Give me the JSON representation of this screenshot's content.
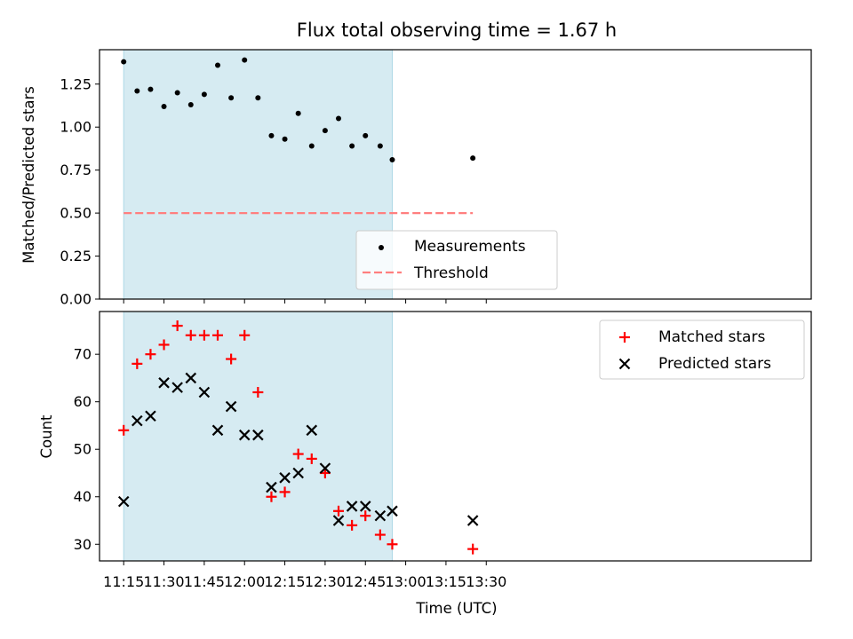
{
  "chart_data": {
    "type": "scatter",
    "title": "Flux total observing time = 1.67 h",
    "xlabel": "Time (UTC)",
    "xlim_minutes": [
      666,
      931
    ],
    "x_ticks": [
      {
        "minutes": 675,
        "label": "11:15"
      },
      {
        "minutes": 690,
        "label": "11:30"
      },
      {
        "minutes": 705,
        "label": "11:45"
      },
      {
        "minutes": 720,
        "label": "12:00"
      },
      {
        "minutes": 735,
        "label": "12:15"
      },
      {
        "minutes": 750,
        "label": "12:30"
      },
      {
        "minutes": 765,
        "label": "12:45"
      },
      {
        "minutes": 780,
        "label": "13:00"
      },
      {
        "minutes": 795,
        "label": "13:15"
      },
      {
        "minutes": 810,
        "label": "13:30"
      }
    ],
    "x_minutes": [
      675,
      680,
      685,
      690,
      695,
      700,
      705,
      710,
      715,
      720,
      725,
      730,
      735,
      740,
      745,
      750,
      755,
      760,
      765,
      770.5,
      775,
      805
    ],
    "shaded_span_minutes": [
      675,
      775
    ],
    "colors": {
      "span": "#add8e6",
      "measurements": "#000000",
      "threshold": "#ff7f7f",
      "matched": "#ff0000",
      "predicted": "#000000"
    },
    "panels": [
      {
        "ylabel": "Matched/Predicted stars",
        "ylim": [
          0,
          1.45
        ],
        "yticks": [
          0.0,
          0.25,
          0.5,
          0.75,
          1.0,
          1.25
        ],
        "ytick_labels": [
          "0.00",
          "0.25",
          "0.50",
          "0.75",
          "1.00",
          "1.25"
        ],
        "series": [
          {
            "name": "Measurements",
            "marker": "dot",
            "values": [
              1.38,
              1.21,
              1.22,
              1.12,
              1.2,
              1.13,
              1.19,
              1.36,
              1.17,
              1.39,
              1.17,
              0.95,
              0.93,
              1.08,
              0.89,
              0.98,
              1.05,
              0.89,
              0.95,
              0.89,
              0.81,
              0.82
            ]
          }
        ],
        "threshold": {
          "name": "Threshold",
          "value": 0.5,
          "x_range_minutes": [
            675,
            805
          ]
        },
        "legend_loc": "lower-center"
      },
      {
        "ylabel": "Count",
        "ylim": [
          26.5,
          79
        ],
        "yticks": [
          30,
          40,
          50,
          60,
          70
        ],
        "ytick_labels": [
          "30",
          "40",
          "50",
          "60",
          "70"
        ],
        "series": [
          {
            "name": "Matched stars",
            "marker": "plus",
            "values": [
              54,
              68,
              70,
              72,
              76,
              74,
              74,
              74,
              69,
              74,
              62,
              40,
              41,
              49,
              48,
              45,
              37,
              34,
              36,
              32,
              30,
              29
            ]
          },
          {
            "name": "Predicted stars",
            "marker": "x",
            "values": [
              39,
              56,
              57,
              64,
              63,
              65,
              62,
              54,
              59,
              53,
              53,
              42,
              44,
              45,
              54,
              46,
              35,
              38,
              38,
              36,
              37,
              35
            ]
          }
        ],
        "legend_loc": "upper-right"
      }
    ]
  }
}
